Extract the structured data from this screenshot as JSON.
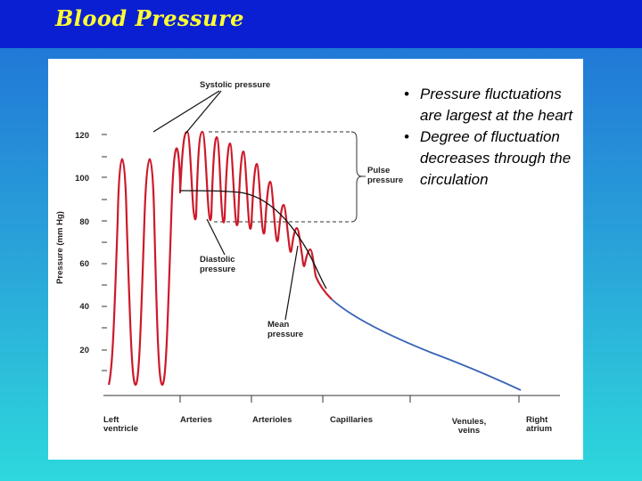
{
  "slide": {
    "title": "Blood Pressure"
  },
  "bullets": [
    {
      "dot": "•",
      "text": "Pressure fluctuations are largest at the heart"
    },
    {
      "dot": "•",
      "text": "Degree of fluctuation decreases through the circulation"
    }
  ],
  "diagram": {
    "y_axis_label": "Pressure (mm Hg)",
    "y_ticks": [
      "120",
      "100",
      "80",
      "60",
      "40",
      "20"
    ],
    "x_labels": [
      {
        "line1": "Left",
        "line2": "ventricle"
      },
      {
        "line1": "Arteries",
        "line2": ""
      },
      {
        "line1": "Arterioles",
        "line2": ""
      },
      {
        "line1": "Capillaries",
        "line2": ""
      },
      {
        "line1": "Venules,",
        "line2": "veins"
      },
      {
        "line1": "Right",
        "line2": "atrium"
      }
    ],
    "annotations": {
      "systolic": "Systolic pressure",
      "pulse_line1": "Pulse",
      "pulse_line2": "pressure",
      "diastolic_line1": "Diastolic",
      "diastolic_line2": "pressure",
      "mean_line1": "Mean",
      "mean_line2": "pressure"
    },
    "colors": {
      "arterial_curve": "#cc1a2a",
      "venous_curve": "#3a64b8",
      "axis": "#333333"
    }
  }
}
